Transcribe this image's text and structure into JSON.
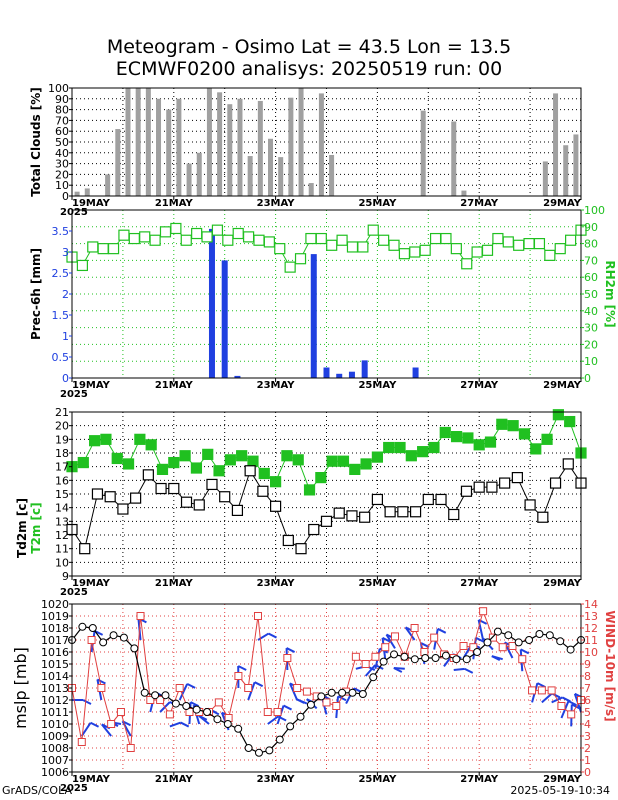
{
  "title_line1": "Meteogram - Osimo Lat = 43.5 Lon = 13.5",
  "title_line2": "ECMWF0200 analisys: 20250519 run: 00",
  "footer_left": "GrADS/COLA",
  "footer_right": "2025-05-19-10:34",
  "date_labels": [
    "19MAY",
    "21MAY",
    "23MAY",
    "25MAY",
    "27MAY",
    "29MAY"
  ],
  "year_label": "2025",
  "chart_data": [
    {
      "type": "bar",
      "ylabel": "Total Clouds [%]",
      "ylim": [
        0,
        100
      ],
      "yticks": [
        0,
        10,
        20,
        30,
        40,
        50,
        60,
        70,
        80,
        90,
        100
      ],
      "x_step_hours": 6,
      "values": [
        4,
        7,
        0,
        20,
        62,
        100,
        100,
        100,
        90,
        80,
        90,
        30,
        40,
        100,
        96,
        85,
        90,
        37,
        88,
        53,
        36,
        91,
        100,
        12,
        95,
        38,
        0,
        0,
        0,
        0,
        0,
        0,
        0,
        0,
        79,
        0,
        0,
        69,
        5,
        0,
        0,
        0,
        0,
        0,
        0,
        0,
        32,
        95,
        47,
        57
      ],
      "color": "#a0a0a0"
    },
    {
      "type": "bar+line",
      "ylabel": "Prec-6h [mm]",
      "ylabel_right": "RH2m [%]",
      "ylim": [
        0,
        4
      ],
      "yticks": [
        0,
        0.5,
        1,
        1.5,
        2,
        2.5,
        3,
        3.5
      ],
      "ylim_right": [
        0,
        100
      ],
      "yticks_right": [
        0,
        10,
        20,
        30,
        40,
        50,
        60,
        70,
        80,
        90,
        100
      ],
      "precip": {
        "x": [
          11,
          12,
          13,
          19,
          20,
          21,
          22,
          23,
          27
        ],
        "values": [
          3.55,
          2.8,
          0.05,
          2.95,
          0.25,
          0.1,
          0.15,
          0.42,
          0.25
        ],
        "color": "#2040e0"
      },
      "rh": {
        "color": "#20c020",
        "values": [
          72,
          67,
          78,
          77,
          77,
          85,
          83,
          84,
          82,
          87,
          89,
          82,
          86,
          84,
          88,
          82,
          86,
          84,
          82,
          81,
          77,
          66,
          71,
          83,
          83,
          79,
          82,
          78,
          78,
          88,
          82,
          79,
          74,
          75,
          76,
          83,
          83,
          77,
          68,
          75,
          76,
          83,
          81,
          79,
          80,
          80,
          73,
          77,
          82,
          88
        ]
      }
    },
    {
      "type": "line",
      "ylabel": "Td2m [c]",
      "ylabel2": "T2m [c]",
      "ylim": [
        9,
        21
      ],
      "yticks": [
        9,
        10,
        11,
        12,
        13,
        14,
        15,
        16,
        17,
        18,
        19,
        20,
        21
      ],
      "t2m": {
        "color": "#20c020",
        "values": [
          17,
          17.3,
          18.9,
          19,
          17.6,
          17.2,
          19,
          18.6,
          16.8,
          17.3,
          17.8,
          16.9,
          17.9,
          16.7,
          17.5,
          17.8,
          17.4,
          16.5,
          15.9,
          17.8,
          17.5,
          15.3,
          16.2,
          17.4,
          17.4,
          16.8,
          17.2,
          17.7,
          18.4,
          18.4,
          17.8,
          18.1,
          18.4,
          19.5,
          19.2,
          19.1,
          18.6,
          18.8,
          20.1,
          20,
          19.4,
          18.3,
          19,
          20.8,
          20.3,
          18
        ]
      },
      "td2m": {
        "color": "#000000",
        "values": [
          12.4,
          11,
          15,
          14.8,
          13.9,
          14.7,
          16.4,
          15.4,
          15.4,
          14.4,
          14.2,
          15.7,
          14.8,
          13.8,
          16.7,
          15.2,
          14.1,
          11.6,
          11,
          12.4,
          13,
          13.6,
          13.4,
          13.3,
          14.6,
          13.7,
          13.7,
          13.7,
          14.6,
          14.6,
          13.5,
          15.2,
          15.5,
          15.5,
          15.8,
          16.2,
          14.2,
          13.3,
          15.8,
          17.2,
          15.8
        ]
      }
    },
    {
      "type": "line+barbs",
      "ylabel": "mslp [mb]",
      "ylabel_right": "WIND-10m [m/s]",
      "ylim": [
        1006,
        1020
      ],
      "yticks": [
        1006,
        1007,
        1008,
        1009,
        1010,
        1011,
        1012,
        1013,
        1014,
        1015,
        1016,
        1017,
        1018,
        1019,
        1020
      ],
      "ylim_right": [
        0,
        14
      ],
      "yticks_right": [
        0,
        1,
        2,
        3,
        4,
        5,
        6,
        7,
        8,
        9,
        10,
        11,
        12,
        13,
        14
      ],
      "mslp": {
        "color": "#000000",
        "values": [
          1017,
          1018.1,
          1018,
          1016.8,
          1017.4,
          1017.2,
          1016.3,
          1012.6,
          1012.4,
          1012.4,
          1011.7,
          1011.5,
          1011.2,
          1011,
          1010.4,
          1010,
          1009.6,
          1008,
          1007.6,
          1007.8,
          1008.7,
          1009.8,
          1010.6,
          1011.6,
          1012.3,
          1012.6,
          1012.6,
          1012.6,
          1012.5,
          1013.9,
          1015.2,
          1015.8,
          1015.6,
          1015.4,
          1015.5,
          1015.5,
          1015.7,
          1015.4,
          1015.4,
          1016,
          1016.8,
          1017.7,
          1017.4,
          1016.8,
          1017,
          1017.5,
          1017.4,
          1016.9,
          1016.2,
          1017
        ]
      },
      "wind": {
        "color": "#e04040",
        "values": [
          7,
          2.5,
          11,
          7,
          4,
          5,
          2,
          13,
          6,
          6,
          4.8,
          7,
          5,
          5,
          5,
          5.8,
          4.5,
          8,
          7,
          13,
          5,
          5,
          9.5,
          7,
          6.7,
          6.3,
          5.8,
          5.5,
          6.7,
          9.6,
          9,
          9.6,
          10.4,
          11.3,
          9.6,
          12,
          10,
          11.2,
          9.8,
          9.5,
          10.5,
          10.4,
          13.4,
          11.2,
          10.4,
          10.5,
          9.4,
          6.8,
          6.8,
          6.8,
          5.5,
          4.8,
          6
        ]
      },
      "barb_color": "#2040e0"
    }
  ]
}
